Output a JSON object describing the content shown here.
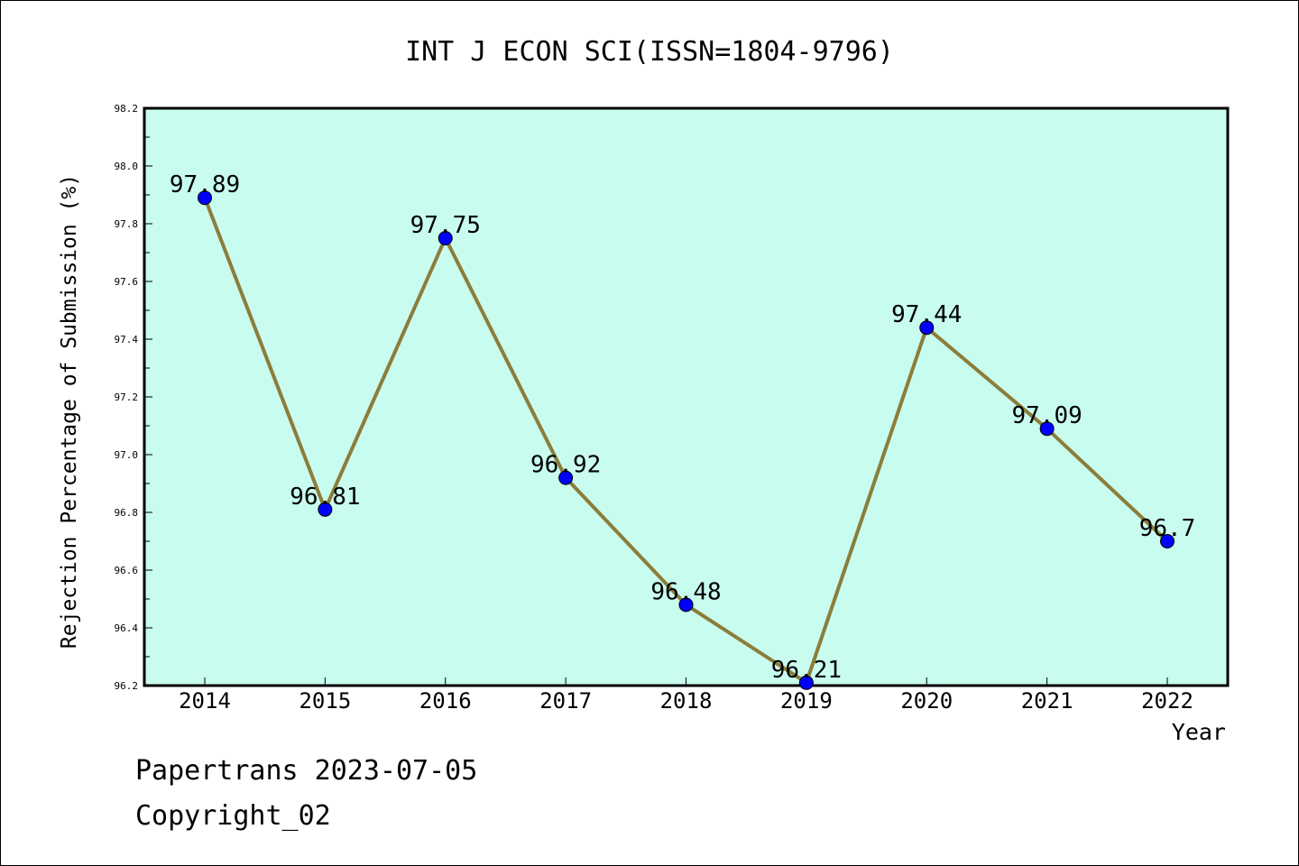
{
  "chart_data": {
    "type": "line",
    "title": "INT J ECON SCI(ISSN=1804-9796)",
    "xlabel": "Year",
    "ylabel": "Rejection Percentage of Submission (%)",
    "categories": [
      "2014",
      "2015",
      "2016",
      "2017",
      "2018",
      "2019",
      "2020",
      "2021",
      "2022"
    ],
    "series": [
      {
        "values": [
          97.89,
          96.81,
          97.75,
          96.92,
          96.48,
          96.21,
          97.44,
          97.09,
          96.7
        ],
        "data_labels": [
          "97.89",
          "96.81",
          "97.75",
          "96.92",
          "96.48",
          "96.21",
          "97.44",
          "97.09",
          "96.7"
        ],
        "line_color": "#8b7d3a",
        "marker_color": "#0000ff"
      }
    ],
    "ylim": [
      96.2,
      98.2
    ],
    "yticks": [
      "96.2",
      "96.4",
      "96.6",
      "96.8",
      "97.0",
      "97.2",
      "97.4",
      "97.6",
      "97.8",
      "98.0",
      "98.2"
    ],
    "plot_background": "#c8fcee",
    "grid": false,
    "legend": "none"
  },
  "footer": {
    "line1": "Papertrans 2023-07-05",
    "line2": "Copyright_02"
  }
}
